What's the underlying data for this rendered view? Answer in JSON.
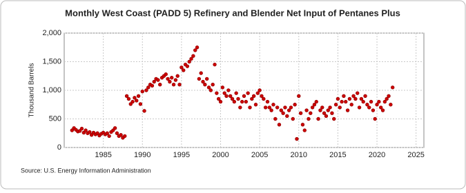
{
  "chart_data": {
    "type": "scatter",
    "title": "Monthly West Coast (PADD 5) Refinery and Blender Net Input of Pentanes Plus",
    "y_label": "Thousand Barrels",
    "source": "Source: U.S. Energy Information Administration",
    "color": "#cc0000",
    "grid": true,
    "xlim": [
      1980,
      2026
    ],
    "xticks": [
      1985,
      1990,
      1995,
      2000,
      2005,
      2010,
      2015,
      2020,
      2025
    ],
    "ylim": [
      0,
      2000
    ],
    "yticks": [
      0,
      500,
      {
        "value": 1000,
        "label": "1,000"
      },
      {
        "value": 1500,
        "label": "1,500"
      },
      {
        "value": 2000,
        "label": "2,000"
      }
    ],
    "x": [
      1981,
      1981.25,
      1981.5,
      1981.75,
      1982,
      1982.25,
      1982.5,
      1982.75,
      1983,
      1983.25,
      1983.5,
      1983.75,
      1984,
      1984.25,
      1984.5,
      1984.75,
      1985,
      1985.25,
      1985.5,
      1985.75,
      1986,
      1986.25,
      1986.5,
      1986.75,
      1987,
      1987.25,
      1987.5,
      1987.75,
      1988,
      1988.25,
      1988.5,
      1988.75,
      1989,
      1989.25,
      1989.5,
      1989.75,
      1990,
      1990.25,
      1990.5,
      1990.75,
      1991,
      1991.25,
      1991.5,
      1991.75,
      1992,
      1992.25,
      1992.5,
      1992.75,
      1993,
      1993.25,
      1993.5,
      1993.75,
      1994,
      1994.25,
      1994.5,
      1994.75,
      1995,
      1995.25,
      1995.5,
      1995.75,
      1996,
      1996.25,
      1996.5,
      1996.75,
      1997,
      1997.25,
      1997.5,
      1997.75,
      1998,
      1998.25,
      1998.5,
      1998.75,
      1999,
      1999.25,
      1999.5,
      1999.75,
      2000,
      2000.25,
      2000.5,
      2000.75,
      2001,
      2001.25,
      2001.5,
      2001.75,
      2002,
      2002.25,
      2002.5,
      2002.75,
      2003,
      2003.25,
      2003.5,
      2003.75,
      2004,
      2004.25,
      2004.5,
      2004.75,
      2005,
      2005.25,
      2005.5,
      2005.75,
      2006,
      2006.25,
      2006.5,
      2006.75,
      2007,
      2007.25,
      2007.5,
      2007.75,
      2008,
      2008.25,
      2008.5,
      2008.75,
      2009,
      2009.25,
      2009.5,
      2009.75,
      2010,
      2010.25,
      2010.5,
      2010.75,
      2011,
      2011.25,
      2011.5,
      2011.75,
      2012,
      2012.25,
      2012.5,
      2012.75,
      2013,
      2013.25,
      2013.5,
      2013.75,
      2014,
      2014.25,
      2014.5,
      2014.75,
      2015,
      2015.25,
      2015.5,
      2015.75,
      2016,
      2016.25,
      2016.5,
      2016.75,
      2017,
      2017.25,
      2017.5,
      2017.75,
      2018,
      2018.25,
      2018.5,
      2018.75,
      2019,
      2019.25,
      2019.5,
      2019.75,
      2020,
      2020.25,
      2020.5,
      2020.75,
      2021,
      2021.25,
      2021.5,
      2021.75,
      2022
    ],
    "values": [
      300,
      340,
      310,
      280,
      290,
      330,
      260,
      300,
      250,
      270,
      220,
      260,
      230,
      250,
      210,
      240,
      260,
      230,
      250,
      200,
      270,
      300,
      340,
      250,
      200,
      220,
      170,
      200,
      900,
      850,
      760,
      800,
      870,
      820,
      900,
      760,
      980,
      640,
      1000,
      1050,
      1100,
      1080,
      1150,
      1200,
      1180,
      1100,
      1220,
      1250,
      1280,
      1200,
      1150,
      1220,
      1100,
      1180,
      1250,
      1100,
      1400,
      1350,
      1450,
      1420,
      1500,
      1550,
      1600,
      1700,
      1750,
      1200,
      1300,
      1150,
      1100,
      1200,
      1050,
      1000,
      1100,
      1450,
      950,
      850,
      800,
      1050,
      950,
      900,
      1000,
      900,
      850,
      800,
      950,
      850,
      700,
      800,
      900,
      800,
      950,
      700,
      850,
      900,
      750,
      950,
      1000,
      900,
      850,
      700,
      800,
      700,
      650,
      750,
      500,
      700,
      400,
      650,
      600,
      700,
      550,
      650,
      700,
      500,
      750,
      150,
      900,
      600,
      400,
      300,
      650,
      500,
      600,
      700,
      750,
      800,
      500,
      650,
      700,
      600,
      550,
      650,
      700,
      600,
      500,
      750,
      850,
      700,
      800,
      900,
      800,
      650,
      850,
      750,
      900,
      850,
      950,
      700,
      850,
      800,
      900,
      750,
      700,
      800,
      650,
      500,
      750,
      800,
      700,
      650,
      800,
      850,
      900,
      750,
      1050
    ]
  }
}
